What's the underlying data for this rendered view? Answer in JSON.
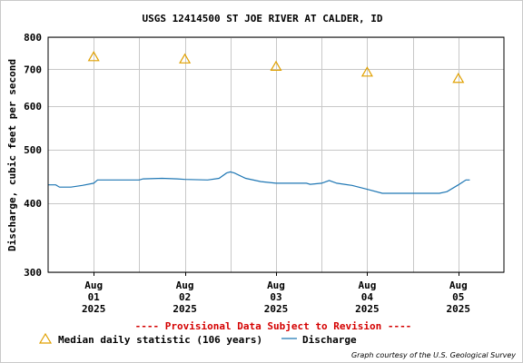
{
  "chart_data": {
    "type": "line",
    "title": "USGS 12414500 ST JOE RIVER AT CALDER, ID",
    "ylabel": "Discharge, cubic feet per second",
    "xlabel": "",
    "y_scale": "log",
    "ylim": [
      300,
      800
    ],
    "y_ticks": [
      "800",
      "700",
      "600",
      "500",
      "400",
      "300"
    ],
    "y_tick_values": [
      800,
      700,
      600,
      500,
      400,
      300
    ],
    "x_range": [
      "2025-07-31T12:00",
      "2025-08-05T12:00"
    ],
    "x_ticks": [
      {
        "t": "2025-08-01T00:00",
        "month": "Aug",
        "day": "01",
        "year": "2025"
      },
      {
        "t": "2025-08-02T00:00",
        "month": "Aug",
        "day": "02",
        "year": "2025"
      },
      {
        "t": "2025-08-03T00:00",
        "month": "Aug",
        "day": "03",
        "year": "2025"
      },
      {
        "t": "2025-08-04T00:00",
        "month": "Aug",
        "day": "04",
        "year": "2025"
      },
      {
        "t": "2025-08-05T00:00",
        "month": "Aug",
        "day": "05",
        "year": "2025"
      }
    ],
    "grid": true,
    "legend_position": "bottom",
    "series": [
      {
        "name": "Median daily statistic (106 years)",
        "kind": "points",
        "marker": "triangle",
        "color": "#e0a000",
        "points": [
          {
            "t": "2025-08-01T00:00",
            "y": 738
          },
          {
            "t": "2025-08-02T00:00",
            "y": 731
          },
          {
            "t": "2025-08-03T00:00",
            "y": 709
          },
          {
            "t": "2025-08-04T00:00",
            "y": 692
          },
          {
            "t": "2025-08-05T00:00",
            "y": 674
          }
        ]
      },
      {
        "name": "Discharge",
        "kind": "line",
        "color": "#1f77b4",
        "points": [
          {
            "t": "2025-07-31T12:00",
            "y": 432
          },
          {
            "t": "2025-07-31T14:00",
            "y": 432
          },
          {
            "t": "2025-07-31T15:00",
            "y": 428
          },
          {
            "t": "2025-07-31T18:00",
            "y": 428
          },
          {
            "t": "2025-07-31T21:00",
            "y": 431
          },
          {
            "t": "2025-08-01T00:00",
            "y": 435
          },
          {
            "t": "2025-08-01T01:00",
            "y": 441
          },
          {
            "t": "2025-08-01T12:00",
            "y": 441
          },
          {
            "t": "2025-08-01T13:00",
            "y": 443
          },
          {
            "t": "2025-08-01T18:00",
            "y": 444
          },
          {
            "t": "2025-08-01T22:00",
            "y": 443
          },
          {
            "t": "2025-08-02T00:00",
            "y": 442
          },
          {
            "t": "2025-08-02T06:00",
            "y": 441
          },
          {
            "t": "2025-08-02T09:00",
            "y": 444
          },
          {
            "t": "2025-08-02T11:00",
            "y": 454
          },
          {
            "t": "2025-08-02T12:00",
            "y": 456
          },
          {
            "t": "2025-08-02T13:00",
            "y": 454
          },
          {
            "t": "2025-08-02T16:00",
            "y": 444
          },
          {
            "t": "2025-08-02T20:00",
            "y": 438
          },
          {
            "t": "2025-08-03T00:00",
            "y": 435
          },
          {
            "t": "2025-08-03T08:00",
            "y": 435
          },
          {
            "t": "2025-08-03T09:00",
            "y": 433
          },
          {
            "t": "2025-08-03T12:00",
            "y": 435
          },
          {
            "t": "2025-08-03T14:00",
            "y": 440
          },
          {
            "t": "2025-08-03T16:00",
            "y": 435
          },
          {
            "t": "2025-08-03T20:00",
            "y": 431
          },
          {
            "t": "2025-08-04T00:00",
            "y": 424
          },
          {
            "t": "2025-08-04T04:00",
            "y": 417
          },
          {
            "t": "2025-08-04T08:00",
            "y": 417
          },
          {
            "t": "2025-08-04T12:00",
            "y": 417
          },
          {
            "t": "2025-08-04T16:00",
            "y": 417
          },
          {
            "t": "2025-08-04T19:00",
            "y": 417
          },
          {
            "t": "2025-08-04T21:00",
            "y": 420
          },
          {
            "t": "2025-08-05T00:00",
            "y": 432
          },
          {
            "t": "2025-08-05T02:00",
            "y": 441
          },
          {
            "t": "2025-08-05T03:00",
            "y": 441
          }
        ]
      }
    ]
  },
  "notice": "---- Provisional Data Subject to Revision ----",
  "credit": "Graph courtesy of the U.S. Geological Survey",
  "colors": {
    "notice": "#d40000",
    "grid": "#c8c8c8",
    "axis": "#000000"
  }
}
